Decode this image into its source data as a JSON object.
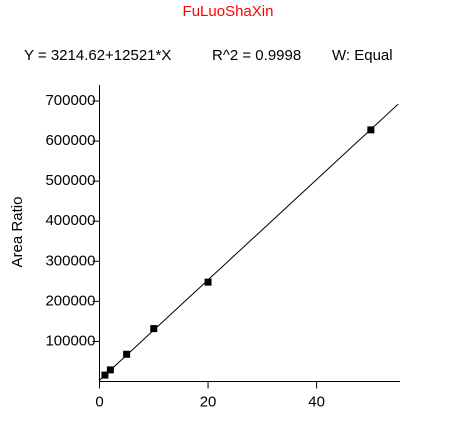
{
  "chart_data": {
    "type": "scatter",
    "title": "FuLuoShaXin",
    "title_color": "#ff0000",
    "equation": "Y = 3214.62+12521*X",
    "r_squared": "R^2 = 0.9998",
    "weighting": "W: Equal",
    "y_label": "Area Ratio",
    "x": [
      1,
      2,
      5,
      10,
      20,
      50
    ],
    "values": [
      16000,
      29000,
      68000,
      132000,
      248000,
      628000
    ],
    "color": "#000000",
    "fit": {
      "intercept": 3214.62,
      "slope": 12521
    },
    "xlim": [
      0,
      55
    ],
    "xticks": [
      0,
      20,
      40
    ],
    "ylim": [
      0,
      740000
    ],
    "yticks": [
      100000,
      200000,
      300000,
      400000,
      500000,
      600000,
      700000
    ]
  }
}
